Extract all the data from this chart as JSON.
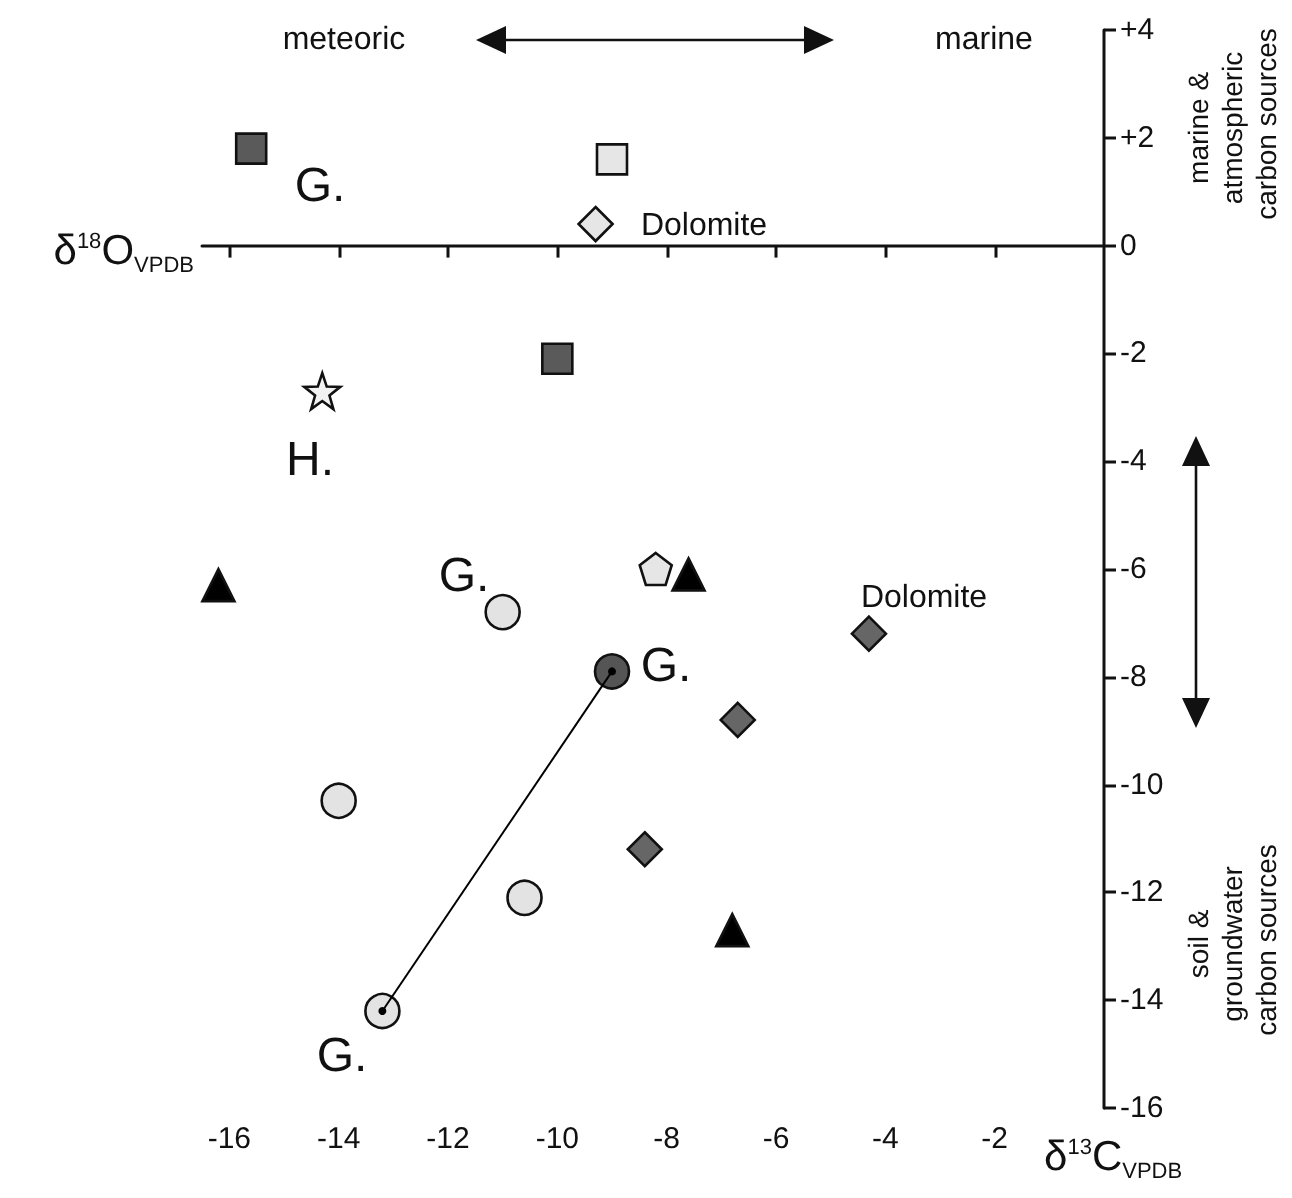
{
  "chart_data": {
    "type": "scatter",
    "xlabel": "δ$^{18}$O$_{VPDB}$",
    "ylabel": "δ$^{13}$C$_{VPDB}$",
    "xlim": [
      -16.5,
      0
    ],
    "xticks": [
      -16,
      -14,
      -12,
      -10,
      -8,
      -6,
      -4,
      -2
    ],
    "ylim": [
      -16,
      4
    ],
    "yticks": [
      {
        "value": 4,
        "label": "+4"
      },
      {
        "value": 2,
        "label": "+2"
      },
      0,
      -2,
      -4,
      -6,
      -8,
      -10,
      -12,
      -14,
      -16
    ],
    "series": [
      {
        "marker": "square",
        "color": "#5a5a5a",
        "x": [
          -15.6,
          -10.0
        ],
        "values": [
          1.8,
          -2.1
        ]
      },
      {
        "marker": "square",
        "color": "#e6e6e6",
        "x": [
          -9.0
        ],
        "values": [
          1.6
        ]
      },
      {
        "marker": "diamond",
        "color": "#e6e6e6",
        "x": [
          -9.3
        ],
        "values": [
          0.4
        ]
      },
      {
        "marker": "diamond",
        "color": "#666666",
        "x": [
          -4.3,
          -6.7,
          -8.4
        ],
        "values": [
          -7.2,
          -8.8,
          -11.2
        ]
      },
      {
        "marker": "star",
        "color": "#f2f2f2",
        "x": [
          -14.3
        ],
        "values": [
          -2.7
        ]
      },
      {
        "marker": "triangle",
        "color": "#000000",
        "x": [
          -16.2,
          -7.6,
          -6.8
        ],
        "values": [
          -6.3,
          -6.1,
          -12.7
        ]
      },
      {
        "color": "#e6e6e6",
        "x": [
          -8.2
        ],
        "values": [
          -6.0
        ]
      },
      {
        "marker": "circle",
        "color": "#e3e3e3",
        "x": [
          -11.0,
          -14.0,
          -10.6,
          -13.2
        ],
        "values": [
          -6.8,
          -10.3,
          -12.1,
          -14.2
        ]
      },
      {
        "marker": "circle",
        "color": "#555555",
        "x": [
          -9.0
        ],
        "values": [
          -7.9
        ]
      },
      {
        "type": "line",
        "marker": "circle",
        "color": "#000000",
        "x": [
          -13.2,
          -9.0
        ],
        "values": [
          -14.2,
          -7.9
        ]
      }
    ],
    "annotations": [
      "meteoric",
      "marine",
      "marine & atmospheric carbon sources",
      "soil & groundwater carbon sources",
      "G.",
      "Dolomite",
      "H.",
      "G.",
      "G.",
      "G.",
      "Dolomite"
    ]
  }
}
